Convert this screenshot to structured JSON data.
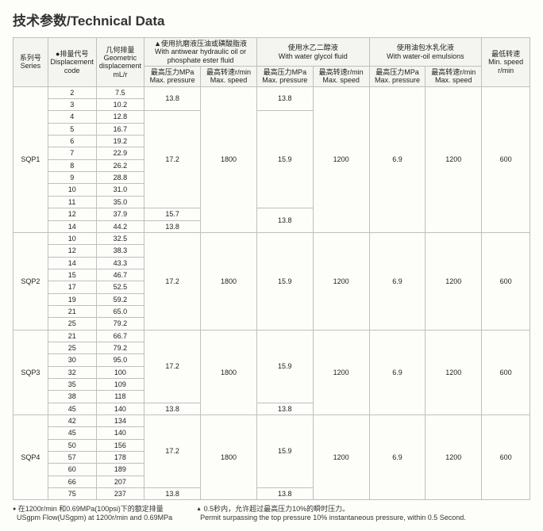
{
  "title": "技术参数/Technical Data",
  "header": {
    "series": "系列号\nSeries",
    "disp_code_mark": "●",
    "disp_code": "排量代号\nDisplacement\ncode",
    "geo": "几何排量\nGeometric\ndisplacement\nmL/r",
    "fluid1_mark": "▲",
    "fluid1": "使用抗磨液压油或磺酸脂液\nWith antiwear hydraulic oil or\nphosphate ester fluid",
    "fluid2": "使用水乙二醇液\nWith water glycol fluid",
    "fluid3": "使用油包水乳化液\nWith water-oil emulsions",
    "min_speed": "最低转速\nMin. speed\nr/min",
    "max_press": "最高压力MPa\nMax. pressure",
    "max_speed": "最高转速r/min\nMax. speed"
  },
  "sqp1": {
    "name": "SQP1",
    "rows": [
      {
        "d": "2",
        "g": "7.5"
      },
      {
        "d": "3",
        "g": "10.2"
      },
      {
        "d": "4",
        "g": "12.8"
      },
      {
        "d": "5",
        "g": "16.7"
      },
      {
        "d": "6",
        "g": "19.2"
      },
      {
        "d": "7",
        "g": "22.9"
      },
      {
        "d": "8",
        "g": "26.2"
      },
      {
        "d": "9",
        "g": "28.8"
      },
      {
        "d": "10",
        "g": "31.0"
      },
      {
        "d": "11",
        "g": "35.0"
      },
      {
        "d": "12",
        "g": "37.9"
      },
      {
        "d": "14",
        "g": "44.2"
      }
    ],
    "p1_top": "13.8",
    "p1_mid": "17.2",
    "p1_r11": "15.7",
    "p1_r12": "13.8",
    "s1": "1800",
    "p2_top": "13.8",
    "p2_mid": "15.9",
    "p2_r11": "13.8",
    "s2": "1200",
    "p3": "6.9",
    "s3": "1200",
    "min": "600"
  },
  "sqp2": {
    "name": "SQP2",
    "rows": [
      {
        "d": "10",
        "g": "32.5"
      },
      {
        "d": "12",
        "g": "38.3"
      },
      {
        "d": "14",
        "g": "43.3"
      },
      {
        "d": "15",
        "g": "46.7"
      },
      {
        "d": "17",
        "g": "52.5"
      },
      {
        "d": "19",
        "g": "59.2"
      },
      {
        "d": "21",
        "g": "65.0"
      },
      {
        "d": "25",
        "g": "79.2"
      }
    ],
    "p1": "17.2",
    "s1": "1800",
    "p2": "15.9",
    "s2": "1200",
    "p3": "6.9",
    "s3": "1200",
    "min": "600"
  },
  "sqp3": {
    "name": "SQP3",
    "rows": [
      {
        "d": "21",
        "g": "66.7"
      },
      {
        "d": "25",
        "g": "79.2"
      },
      {
        "d": "30",
        "g": "95.0"
      },
      {
        "d": "32",
        "g": "100"
      },
      {
        "d": "35",
        "g": "109"
      },
      {
        "d": "38",
        "g": "118"
      },
      {
        "d": "45",
        "g": "140"
      }
    ],
    "p1_top": "17.2",
    "p1_bot": "13.8",
    "s1": "1800",
    "p2_top": "15.9",
    "p2_bot": "13.8",
    "s2": "1200",
    "p3": "6.9",
    "s3": "1200",
    "min": "600"
  },
  "sqp4": {
    "name": "SQP4",
    "rows": [
      {
        "d": "42",
        "g": "134"
      },
      {
        "d": "45",
        "g": "140"
      },
      {
        "d": "50",
        "g": "156"
      },
      {
        "d": "57",
        "g": "178"
      },
      {
        "d": "60",
        "g": "189"
      },
      {
        "d": "66",
        "g": "207"
      },
      {
        "d": "75",
        "g": "237"
      }
    ],
    "p1_top": "17.2",
    "p1_bot": "13.8",
    "s1": "1800",
    "p2_top": "15.9",
    "p2_bot": "13.8",
    "s2": "1200",
    "p3": "6.9",
    "s3": "1200",
    "min": "600"
  },
  "footnotes": {
    "left_mark": "●",
    "left_cn": "在1200r/min 和0.69MPa(100psi)下的额定排量",
    "left_en": "USgpm Flow(USgpm) at 1200r/min and 0.69MPa",
    "right_mark": "▲",
    "right_cn": "0.5秒内，允许超过最高压力10%的瞬时压力。",
    "right_en": "Permit surpassing the top pressure 10% instantaneous pressure, within 0.5 Second."
  }
}
